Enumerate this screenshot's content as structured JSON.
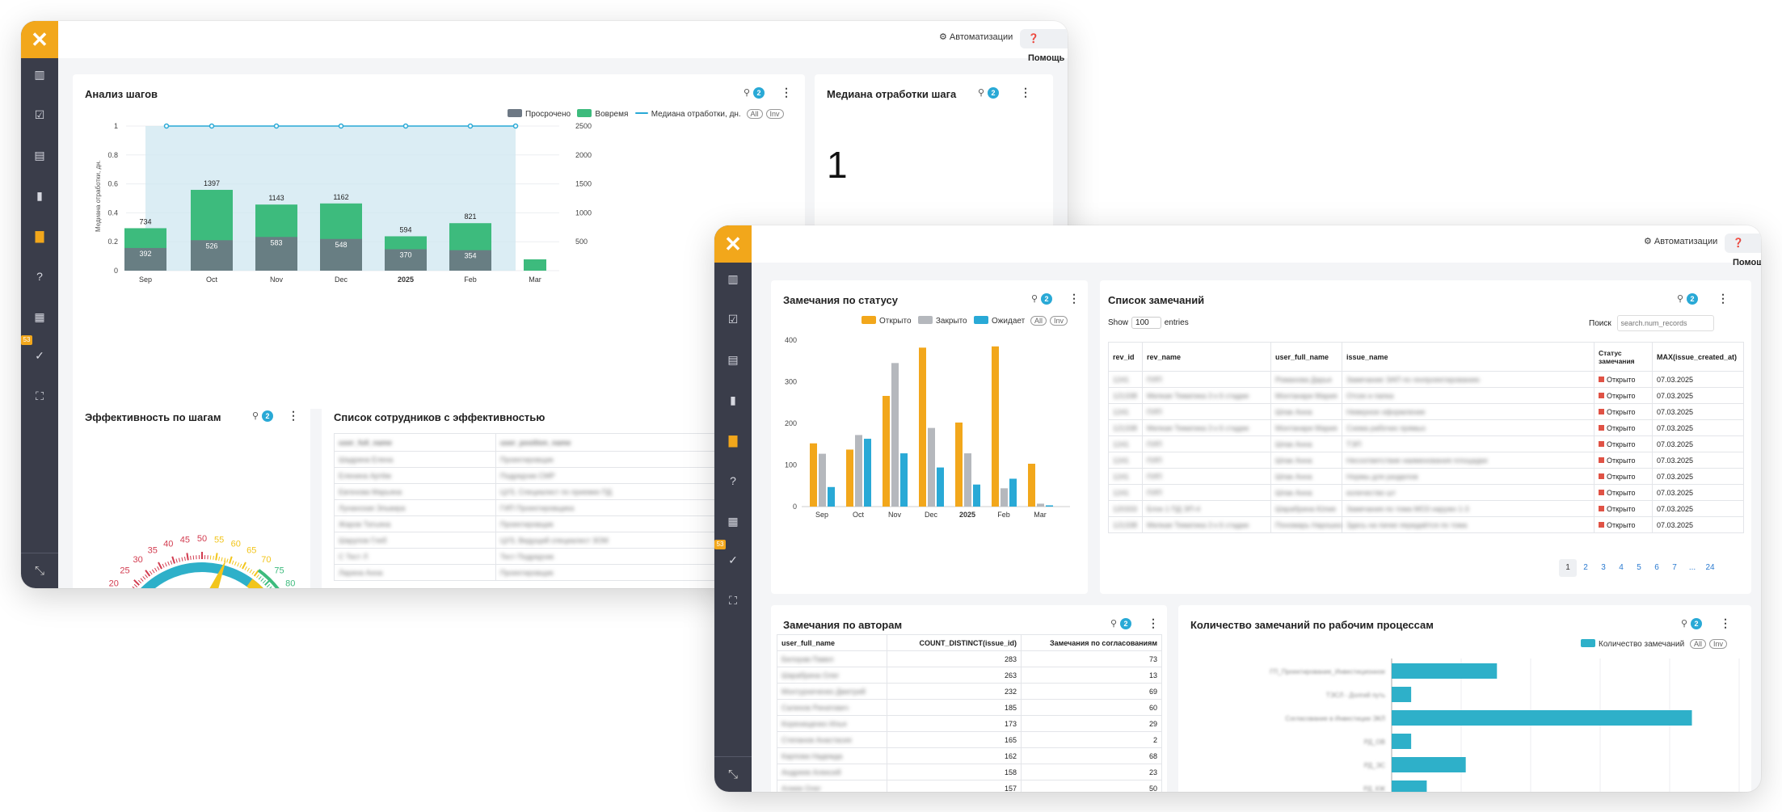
{
  "common": {
    "automations": "Автоматизации",
    "help": "Помощь",
    "badge": "53",
    "filter_count": "2"
  },
  "win1": {
    "steps_card": {
      "title": "Анализ шагов",
      "legend": [
        "Просрочено",
        "Вовремя",
        "Медиана отработки, дн."
      ],
      "all": "All",
      "inv": "Inv"
    },
    "median_card": {
      "title": "Медиана отработки шага",
      "value": "1"
    },
    "eff_card": {
      "title": "Эффективность по шагам"
    },
    "emp_card": {
      "title": "Список сотрудников с эффективностью",
      "headers": [
        "user_full_name",
        "user_position_name"
      ],
      "rows": [
        [
          "Шадрина Елена",
          "Проектировщик"
        ],
        [
          "Еленина Артём",
          "Подрядчик СМР"
        ],
        [
          "Евгенова Марьяна",
          "ЦУЗ, Специалист по приемке ПД"
        ],
        [
          "Лунанская Эльвира",
          "ГИП Проектировщика"
        ],
        [
          "Жаров Татьяна",
          "Проектировщик"
        ],
        [
          "Шарупов Глеб",
          "ЦУЗ, Ведущий специалист ЗОМ"
        ],
        [
          "С Тест Л",
          "Тест Подрядчик"
        ],
        [
          "Ларина Анна",
          "Проектировщик"
        ]
      ]
    },
    "gauge_labels": [
      "20",
      "25",
      "30",
      "35",
      "40",
      "45",
      "50",
      "55",
      "60",
      "65",
      "70",
      "75",
      "80"
    ]
  },
  "win2": {
    "status_card": {
      "title": "Замечания по статусу",
      "legend": [
        "Открыто",
        "Закрыто",
        "Ожидает"
      ],
      "all": "All",
      "inv": "Inv"
    },
    "issues_card": {
      "title": "Список замечаний",
      "show": "Show",
      "entries_value": "100",
      "entries": "entries",
      "search": "Поиск",
      "search_ph": "search.num_records",
      "headers": [
        "rev_id",
        "rev_name",
        "user_full_name",
        "issue_name",
        "Статус замечания",
        "MAX(issue_created_at)"
      ],
      "rows": [
        [
          "1241",
          "ПЛП",
          "Романова Дарья",
          "Замечание ЭАП по генпроектированию",
          "Открыто",
          "07.03.2025"
        ],
        [
          "121338",
          "Мелкая Тематика 3 к 6 стадии",
          "Монтанари Мария",
          "Отсек и папка",
          "Открыто",
          "07.03.2025"
        ],
        [
          "1241",
          "ПЛП",
          "Шпак Анна",
          "Неверное оформление",
          "Открыто",
          "07.03.2025"
        ],
        [
          "121338",
          "Мелкая Тематика 3 к 6 стадии",
          "Монтанари Мария",
          "Схема рабочих прямых",
          "Открыто",
          "07.03.2025"
        ],
        [
          "1241",
          "ПЛП",
          "Шпак Анна",
          "ТЭП",
          "Открыто",
          "07.03.2025"
        ],
        [
          "1241",
          "ПЛП",
          "Шпак Анна",
          "Несоответствие наименования площадки",
          "Открыто",
          "07.03.2025"
        ],
        [
          "1241",
          "ПЛП",
          "Шпак Анна",
          "Нормы для разделов",
          "Открыто",
          "07.03.2025"
        ],
        [
          "1241",
          "ПЛП",
          "Шпак Анна",
          "количество шт",
          "Открыто",
          "07.03.2025"
        ],
        [
          "120333",
          "Блок 1 ПД ЭП-4",
          "Шарабрина Юлия",
          "Замечания по тома МО3 наружн 1-3",
          "Открыто",
          "07.03.2025"
        ],
        [
          "121338",
          "Мелкая Тематика 3 к 6 стадии",
          "Пономарь Нарошка",
          "Здесь на пачке передаётся по тома",
          "Открыто",
          "07.03.2025"
        ]
      ],
      "pages": [
        "1",
        "2",
        "3",
        "4",
        "5",
        "6",
        "7",
        "...",
        "24"
      ]
    },
    "authors_card": {
      "title": "Замечания по авторам",
      "headers": [
        "user_full_name",
        "COUNT_DISTINCT(issue_id)",
        "Замечания по согласованиям"
      ],
      "rows": [
        [
          "Белорав Павел",
          "283",
          "73"
        ],
        [
          "Шарабрина Олег",
          "263",
          "13"
        ],
        [
          "Монтурниченко Дмитрий",
          "232",
          "69"
        ],
        [
          "Салихов Ринатович",
          "185",
          "60"
        ],
        [
          "Коренищенко Илья",
          "173",
          "29"
        ],
        [
          "Степанов Анастасия",
          "165",
          "2"
        ],
        [
          "Карпова Надежда",
          "162",
          "68"
        ],
        [
          "Андреев Алексей",
          "158",
          "23"
        ],
        [
          "Алиев Олег",
          "157",
          "50"
        ]
      ]
    },
    "process_card": {
      "title": "Количество замечаний по рабочим процессам",
      "legend": "Количество замечаний",
      "all": "All",
      "inv": "Inv",
      "categories": [
        "ГП_Проектирование_Инвестиционное",
        "ТЭСЛ - Долгий путь",
        "Согласование в Инвестиции ЭКЛ",
        "РД_ОВ",
        "РД_ЭС",
        "РД_КЖ"
      ]
    }
  },
  "colors": {
    "orange": "#f2a71b",
    "green": "#3dbb7d",
    "gray": "#6d7884",
    "teal": "#29a9d6",
    "blue": "#2eb0c9",
    "lightgray": "#b5b8bd"
  },
  "chart_data": [
    {
      "type": "bar",
      "title": "Анализ шагов",
      "ylabel": "Медиана отработки, дн.",
      "categories": [
        "Sep",
        "Oct",
        "Nov",
        "Dec",
        "2025",
        "Feb",
        "Mar"
      ],
      "series": [
        {
          "name": "Просрочено",
          "values": [
            392,
            526,
            583,
            548,
            370,
            354,
            0
          ]
        },
        {
          "name": "Вовремя",
          "values": [
            734,
            1397,
            1143,
            1162,
            594,
            821,
            null
          ]
        },
        {
          "name": "Медиана отработки, дн.",
          "values": [
            1,
            1,
            1,
            1,
            1,
            1,
            1
          ]
        }
      ],
      "ylim_left": [
        0,
        1
      ],
      "ylim_right": [
        0,
        2500
      ]
    },
    {
      "type": "bar",
      "title": "Замечания по статусу",
      "categories": [
        "Sep",
        "Oct",
        "Nov",
        "Dec",
        "2025",
        "Feb",
        "Mar"
      ],
      "series": [
        {
          "name": "Открыто",
          "values": [
            152,
            137,
            266,
            382,
            202,
            385,
            103
          ]
        },
        {
          "name": "Закрыто",
          "values": [
            127,
            172,
            345,
            189,
            128,
            44,
            7
          ]
        },
        {
          "name": "Ожидает",
          "values": [
            47,
            163,
            128,
            94,
            53,
            67,
            3
          ]
        }
      ],
      "ylim": [
        0,
        400
      ]
    },
    {
      "type": "bar",
      "title": "Количество замечаний по рабочим процессам",
      "orientation": "horizontal",
      "categories": [
        "ГП_Проектирование_Инвестиционное",
        "ТЭСЛ - Долгий путь",
        "Согласование в Инвестиции ЭКЛ",
        "РД_ОВ",
        "РД_ЭС",
        "РД_КЖ"
      ],
      "series": [
        {
          "name": "Количество замечаний",
          "values": [
            135,
            25,
            385,
            25,
            95,
            45
          ]
        }
      ]
    }
  ]
}
